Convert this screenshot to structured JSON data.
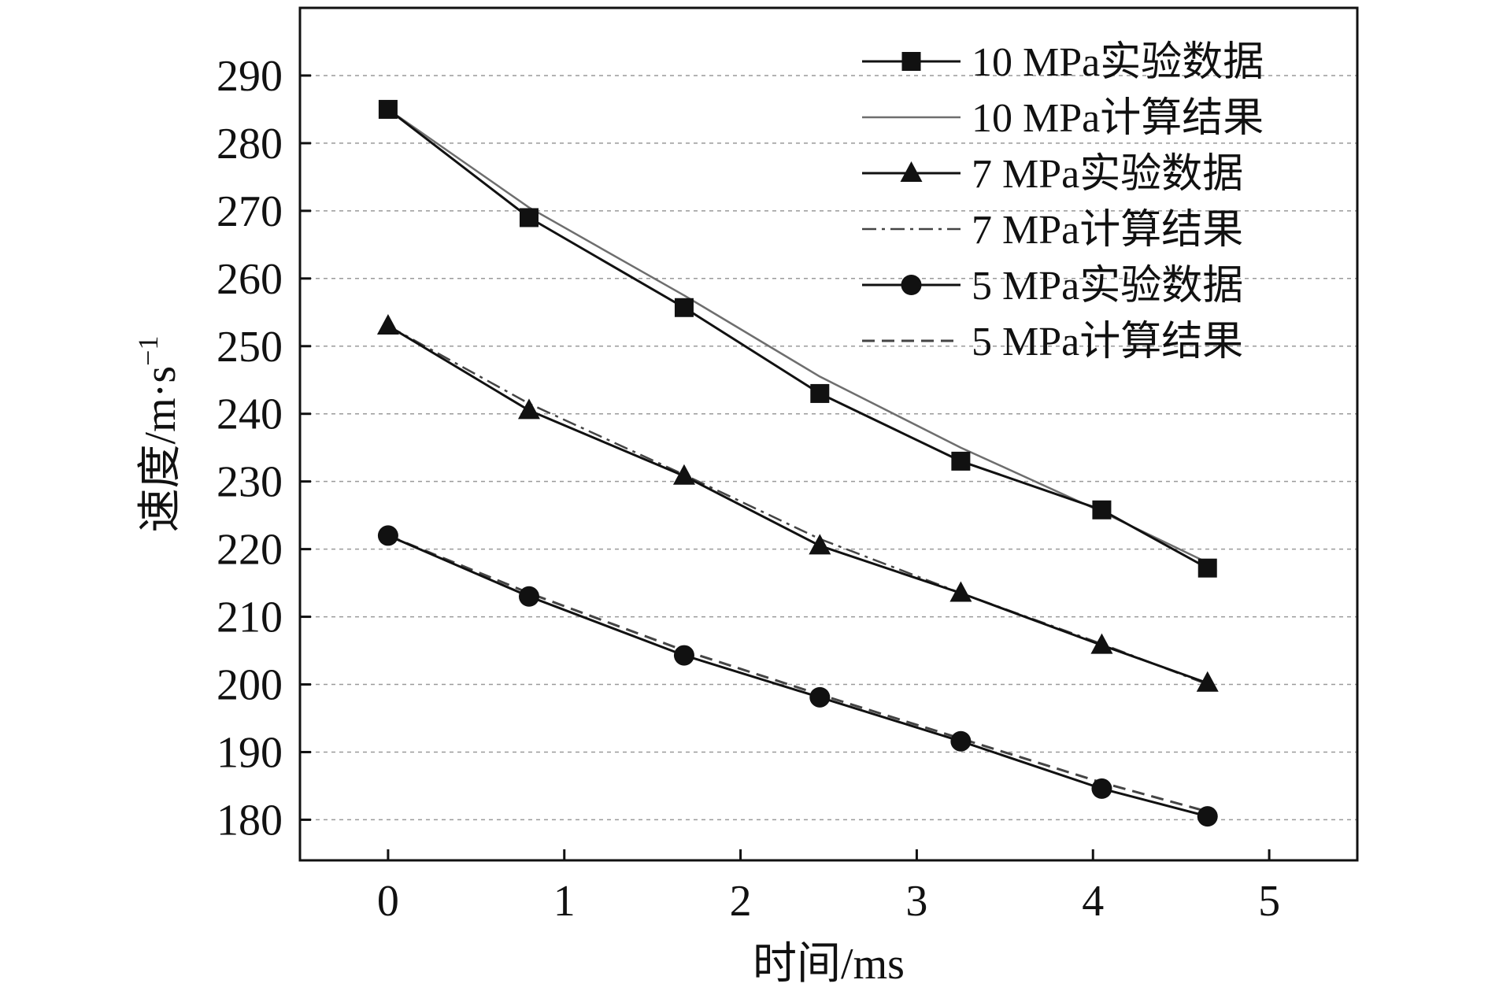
{
  "chart_data": {
    "type": "line",
    "title": "",
    "xlabel": "时间/ms",
    "ylabel": "速度/m·s",
    "ylabel_superscript": "−1",
    "xlim": [
      -0.5,
      5.5
    ],
    "ylim": [
      174,
      300
    ],
    "xticks": [
      0,
      1,
      2,
      3,
      4,
      5
    ],
    "yticks": [
      180,
      190,
      200,
      210,
      220,
      230,
      240,
      250,
      260,
      270,
      280,
      290
    ],
    "grid": "horizontal-dashed",
    "legend_position": "top-right",
    "series": [
      {
        "name": "10 MPa实验数据",
        "style": "solid-square",
        "color": "#111111",
        "x": [
          0,
          0.8,
          1.68,
          2.45,
          3.25,
          4.05,
          4.65
        ],
        "y": [
          285,
          269,
          255.7,
          243,
          233,
          225.8,
          217.2
        ]
      },
      {
        "name": "10 MPa计算结果",
        "style": "thin-solid",
        "color": "#6e6e6e",
        "x": [
          0,
          0.8,
          1.68,
          2.45,
          3.25,
          4.05,
          4.65
        ],
        "y": [
          285,
          270.5,
          257.5,
          245.5,
          235,
          225.5,
          218
        ]
      },
      {
        "name": "7 MPa实验数据",
        "style": "solid-triangle",
        "color": "#111111",
        "x": [
          0,
          0.8,
          1.68,
          2.45,
          3.25,
          4.05,
          4.65
        ],
        "y": [
          253,
          240.5,
          230.8,
          220.5,
          213.5,
          205.8,
          200.2
        ]
      },
      {
        "name": "7 MPa计算结果",
        "style": "dash-dot",
        "color": "#444444",
        "x": [
          0,
          0.8,
          1.68,
          2.45,
          3.25,
          4.05,
          4.65
        ],
        "y": [
          253,
          241.5,
          231,
          221.5,
          213.5,
          206,
          200
        ]
      },
      {
        "name": "5 MPa实验数据",
        "style": "solid-circle",
        "color": "#111111",
        "x": [
          0,
          0.8,
          1.68,
          2.45,
          3.25,
          4.05,
          4.65
        ],
        "y": [
          222,
          213,
          204.3,
          198.1,
          191.6,
          184.6,
          180.5
        ]
      },
      {
        "name": "5 MPa计算结果",
        "style": "dashed",
        "color": "#444444",
        "x": [
          0,
          0.8,
          1.68,
          2.45,
          3.25,
          4.05,
          4.65
        ],
        "y": [
          222,
          213.5,
          205,
          198.5,
          192,
          185.5,
          181.2
        ]
      }
    ]
  }
}
